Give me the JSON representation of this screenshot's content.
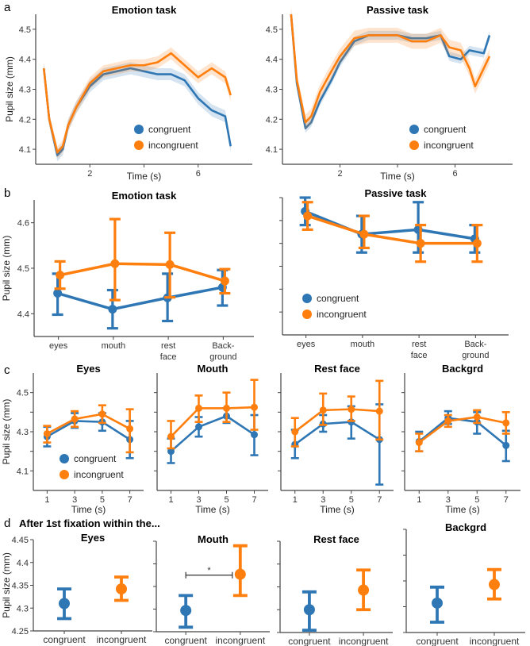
{
  "colors": {
    "congruent": "#2f77b4",
    "incongruent": "#ff7f0e",
    "axis": "#444444"
  },
  "panel_letters": [
    "a",
    "b",
    "c",
    "d"
  ],
  "legend": {
    "congruent": "congruent",
    "incongruent": "incongruent"
  },
  "chart_data": [
    {
      "id": "a-emotion",
      "panel": "a",
      "type": "line",
      "title": "Emotion task",
      "xlabel": "Time (s)",
      "ylabel": "Pupil size (mm)",
      "xlim": [
        0,
        8
      ],
      "ylim": [
        4.05,
        4.55
      ],
      "xticks": [
        2,
        6
      ],
      "yticks": [
        4.1,
        4.2,
        4.3,
        4.4,
        4.5
      ],
      "legend_position": "lower-center",
      "series": [
        {
          "name": "congruent",
          "x": [
            0.3,
            0.5,
            0.8,
            1.0,
            1.2,
            1.5,
            2.0,
            2.5,
            3.0,
            3.5,
            4.0,
            4.5,
            5.0,
            5.5,
            6.0,
            6.5,
            7.0,
            7.2
          ],
          "y": [
            4.37,
            4.2,
            4.08,
            4.1,
            4.18,
            4.24,
            4.31,
            4.35,
            4.36,
            4.37,
            4.36,
            4.35,
            4.35,
            4.33,
            4.27,
            4.23,
            4.21,
            4.11
          ],
          "ci": 0.02
        },
        {
          "name": "incongruent",
          "x": [
            0.3,
            0.5,
            0.8,
            1.0,
            1.2,
            1.5,
            2.0,
            2.5,
            3.0,
            3.5,
            4.0,
            4.5,
            5.0,
            5.5,
            6.0,
            6.5,
            7.0,
            7.2
          ],
          "y": [
            4.37,
            4.2,
            4.09,
            4.11,
            4.18,
            4.24,
            4.32,
            4.36,
            4.37,
            4.38,
            4.38,
            4.39,
            4.42,
            4.38,
            4.34,
            4.37,
            4.34,
            4.28
          ],
          "ci": 0.02
        }
      ]
    },
    {
      "id": "a-passive",
      "panel": "a",
      "type": "line",
      "title": "Passive task",
      "xlabel": "Time (s)",
      "ylabel": "",
      "xlim": [
        0,
        8
      ],
      "ylim": [
        4.05,
        4.55
      ],
      "xticks": [
        2,
        6
      ],
      "yticks": [
        4.1,
        4.2,
        4.3,
        4.4,
        4.5
      ],
      "legend_position": "lower-right",
      "series": [
        {
          "name": "congruent",
          "x": [
            0.3,
            0.5,
            0.8,
            1.0,
            1.3,
            1.7,
            2.0,
            2.5,
            3.0,
            3.5,
            4.0,
            4.5,
            5.0,
            5.5,
            5.8,
            6.2,
            6.5,
            7.0,
            7.2
          ],
          "y": [
            4.55,
            4.32,
            4.17,
            4.19,
            4.26,
            4.33,
            4.39,
            4.46,
            4.48,
            4.48,
            4.48,
            4.47,
            4.47,
            4.48,
            4.41,
            4.4,
            4.43,
            4.42,
            4.48
          ],
          "ci": 0.015
        },
        {
          "name": "incongruent",
          "x": [
            0.3,
            0.5,
            0.8,
            1.0,
            1.3,
            1.7,
            2.0,
            2.5,
            3.0,
            3.5,
            4.0,
            4.5,
            5.0,
            5.5,
            5.8,
            6.2,
            6.5,
            6.7,
            7.0,
            7.2
          ],
          "y": [
            4.55,
            4.33,
            4.19,
            4.21,
            4.29,
            4.36,
            4.41,
            4.47,
            4.48,
            4.48,
            4.48,
            4.46,
            4.46,
            4.48,
            4.44,
            4.43,
            4.37,
            4.31,
            4.37,
            4.41
          ],
          "ci": 0.025
        }
      ]
    },
    {
      "id": "b-emotion",
      "panel": "b",
      "type": "line",
      "title": "Emotion task",
      "ylabel": "Pupil size (mm)",
      "categories": [
        "eyes",
        "mouth",
        "rest\nface",
        "Back-\nground"
      ],
      "ylim": [
        4.35,
        4.65
      ],
      "yticks": [
        4.4,
        4.5,
        4.6
      ],
      "series": [
        {
          "name": "congruent",
          "values": [
            4.445,
            4.41,
            4.435,
            4.458
          ],
          "err_low": [
            4.398,
            4.368,
            4.384,
            4.418
          ],
          "err_high": [
            4.488,
            4.452,
            4.488,
            4.496
          ]
        },
        {
          "name": "incongruent",
          "values": [
            4.485,
            4.51,
            4.508,
            4.472
          ],
          "err_low": [
            4.455,
            4.43,
            4.436,
            4.445
          ],
          "err_high": [
            4.515,
            4.608,
            4.578,
            4.498
          ]
        }
      ]
    },
    {
      "id": "b-passive",
      "panel": "b",
      "type": "line",
      "title": "Passive task",
      "ylabel": "",
      "categories": [
        "eyes",
        "mouth",
        "rest\nface",
        "Back-\nground"
      ],
      "ylim": [
        4.35,
        4.65
      ],
      "yticks": [
        4.4,
        4.45,
        4.5,
        4.55,
        4.6,
        4.65
      ],
      "legend_position": "lower-left",
      "series": [
        {
          "name": "congruent",
          "values": [
            4.62,
            4.57,
            4.58,
            4.56
          ],
          "err_low": [
            4.59,
            4.53,
            4.53,
            4.53
          ],
          "err_high": [
            4.65,
            4.61,
            4.64,
            4.59
          ]
        },
        {
          "name": "incongruent",
          "values": [
            4.61,
            4.57,
            4.55,
            4.55
          ],
          "err_low": [
            4.58,
            4.54,
            4.51,
            4.51
          ],
          "err_high": [
            4.64,
            4.61,
            4.59,
            4.59
          ]
        }
      ]
    },
    {
      "id": "c-eyes",
      "panel": "c",
      "type": "line",
      "title": "Eyes",
      "xlabel": "Time (s)",
      "ylabel": "Pupil size (mm)",
      "x": [
        1,
        3,
        5,
        7
      ],
      "xlim": [
        0,
        8
      ],
      "ylim": [
        4.0,
        4.6
      ],
      "yticks": [
        4.1,
        4.3,
        4.5
      ],
      "minor_yticks": [
        4.2,
        4.4
      ],
      "legend_position": "lower-center",
      "series": [
        {
          "name": "congruent",
          "values": [
            4.275,
            4.355,
            4.35,
            4.26
          ],
          "err_low": [
            4.225,
            4.32,
            4.305,
            4.165
          ],
          "err_high": [
            4.325,
            4.395,
            4.395,
            4.355
          ]
        },
        {
          "name": "incongruent",
          "values": [
            4.29,
            4.365,
            4.39,
            4.315
          ],
          "err_low": [
            4.245,
            4.325,
            4.345,
            4.195
          ],
          "err_high": [
            4.33,
            4.405,
            4.435,
            4.415
          ]
        }
      ]
    },
    {
      "id": "c-mouth",
      "panel": "c",
      "type": "line",
      "title": "Mouth",
      "xlabel": "Time (s)",
      "x": [
        1,
        3,
        5,
        7
      ],
      "xlim": [
        0,
        8
      ],
      "ylim": [
        4.0,
        4.6
      ],
      "yticks": [
        4.1,
        4.2,
        4.3,
        4.4,
        4.5
      ],
      "series": [
        {
          "name": "congruent",
          "values": [
            4.2,
            4.325,
            4.38,
            4.285
          ],
          "err_low": [
            4.14,
            4.275,
            4.345,
            4.18
          ],
          "err_high": [
            4.265,
            4.375,
            4.42,
            4.385
          ]
        },
        {
          "name": "incongruent",
          "values": [
            4.275,
            4.42,
            4.42,
            4.425
          ],
          "err_low": [
            4.215,
            4.35,
            4.35,
            4.31
          ],
          "err_high": [
            4.355,
            4.485,
            4.5,
            4.565
          ]
        }
      ]
    },
    {
      "id": "c-restface",
      "panel": "c",
      "type": "line",
      "title": "Rest face",
      "xlabel": "Time (s)",
      "x": [
        1,
        3,
        5,
        7
      ],
      "xlim": [
        0,
        8
      ],
      "ylim": [
        4.0,
        4.6
      ],
      "yticks": [
        4.1,
        4.2,
        4.3,
        4.4,
        4.5
      ],
      "series": [
        {
          "name": "congruent",
          "values": [
            4.235,
            4.34,
            4.35,
            4.26
          ],
          "err_low": [
            4.165,
            4.3,
            4.265,
            4.03
          ],
          "err_high": [
            4.31,
            4.385,
            4.43,
            4.44
          ]
        },
        {
          "name": "incongruent",
          "values": [
            4.3,
            4.41,
            4.415,
            4.405
          ],
          "err_low": [
            4.225,
            4.335,
            4.355,
            4.26
          ],
          "err_high": [
            4.37,
            4.495,
            4.48,
            4.56
          ]
        }
      ]
    },
    {
      "id": "c-backgrd",
      "panel": "c",
      "type": "line",
      "title": "Backgrd",
      "xlabel": "Time (s)",
      "x": [
        1,
        3,
        5,
        7
      ],
      "xlim": [
        0,
        8
      ],
      "ylim": [
        4.0,
        4.6
      ],
      "yticks": [
        4.1,
        4.2,
        4.3,
        4.4,
        4.5
      ],
      "series": [
        {
          "name": "congruent",
          "values": [
            4.25,
            4.37,
            4.35,
            4.23
          ],
          "err_low": [
            4.2,
            4.34,
            4.29,
            4.15
          ],
          "err_high": [
            4.3,
            4.405,
            4.4,
            4.305
          ]
        },
        {
          "name": "incongruent",
          "values": [
            4.245,
            4.355,
            4.375,
            4.345
          ],
          "err_low": [
            4.2,
            4.325,
            4.345,
            4.29
          ],
          "err_high": [
            4.29,
            4.385,
            4.41,
            4.4
          ]
        }
      ]
    },
    {
      "id": "d-eyes",
      "panel": "d",
      "type": "scatter",
      "title": "Eyes",
      "suptitle": "After 1st fixation within the...",
      "ylabel": "Pupil size (mm)",
      "categories": [
        "congruent",
        "incongruent"
      ],
      "ylim": [
        4.25,
        4.45
      ],
      "yticks": [
        4.25,
        4.3,
        4.35,
        4.4,
        4.45
      ],
      "values": [
        4.31,
        4.342
      ],
      "err_low": [
        4.277,
        4.317
      ],
      "err_high": [
        4.342,
        4.368
      ]
    },
    {
      "id": "d-mouth",
      "panel": "d",
      "type": "scatter",
      "title": "Mouth",
      "categories": [
        "congruent",
        "incongruent"
      ],
      "ylim": [
        4.25,
        4.45
      ],
      "yticks": [
        4.25,
        4.3,
        4.35,
        4.4,
        4.45
      ],
      "values": [
        4.297,
        4.377
      ],
      "err_low": [
        4.26,
        4.33
      ],
      "err_high": [
        4.33,
        4.44
      ],
      "annotation": {
        "text": "*",
        "between": [
          "congruent",
          "incongruent"
        ],
        "y": 4.375
      }
    },
    {
      "id": "d-restface",
      "panel": "d",
      "type": "scatter",
      "title": "Rest face",
      "categories": [
        "congruent",
        "incongruent"
      ],
      "ylim": [
        4.25,
        4.45
      ],
      "yticks": [
        4.25,
        4.3,
        4.35,
        4.4,
        4.45
      ],
      "values": [
        4.3,
        4.343
      ],
      "err_low": [
        4.255,
        4.3
      ],
      "err_high": [
        4.339,
        4.387
      ]
    },
    {
      "id": "d-backgrd",
      "panel": "d",
      "type": "scatter",
      "title": "Backgrd",
      "categories": [
        "congruent",
        "incongruent"
      ],
      "ylim": [
        4.25,
        4.45
      ],
      "yticks": [
        4.25,
        4.3,
        4.35,
        4.4,
        4.45
      ],
      "values": [
        4.307,
        4.343
      ],
      "err_low": [
        4.27,
        4.315
      ],
      "err_high": [
        4.338,
        4.372
      ]
    }
  ]
}
